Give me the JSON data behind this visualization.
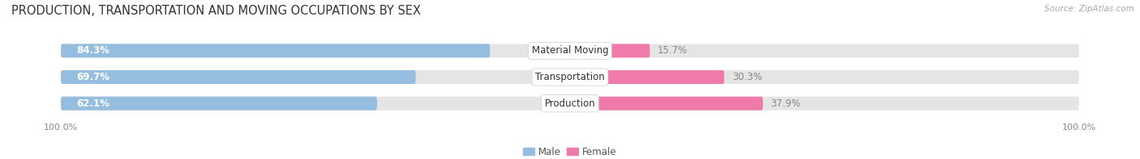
{
  "title": "PRODUCTION, TRANSPORTATION AND MOVING OCCUPATIONS BY SEX",
  "source": "Source: ZipAtlas.com",
  "categories": [
    "Material Moving",
    "Transportation",
    "Production"
  ],
  "male_values": [
    84.3,
    69.7,
    62.1
  ],
  "female_values": [
    15.7,
    30.3,
    37.9
  ],
  "male_color": "#94bde0",
  "female_color": "#f07baa",
  "female_light_color": "#f5aac8",
  "bar_bg_color": "#e5e5e5",
  "bar_height": 0.52,
  "bar_gap": 0.18,
  "title_fontsize": 10.5,
  "label_fontsize": 8.5,
  "value_fontsize": 8.5,
  "tick_fontsize": 8,
  "legend_labels": [
    "Male",
    "Female"
  ],
  "left_tick": "100.0%",
  "right_tick": "100.0%"
}
